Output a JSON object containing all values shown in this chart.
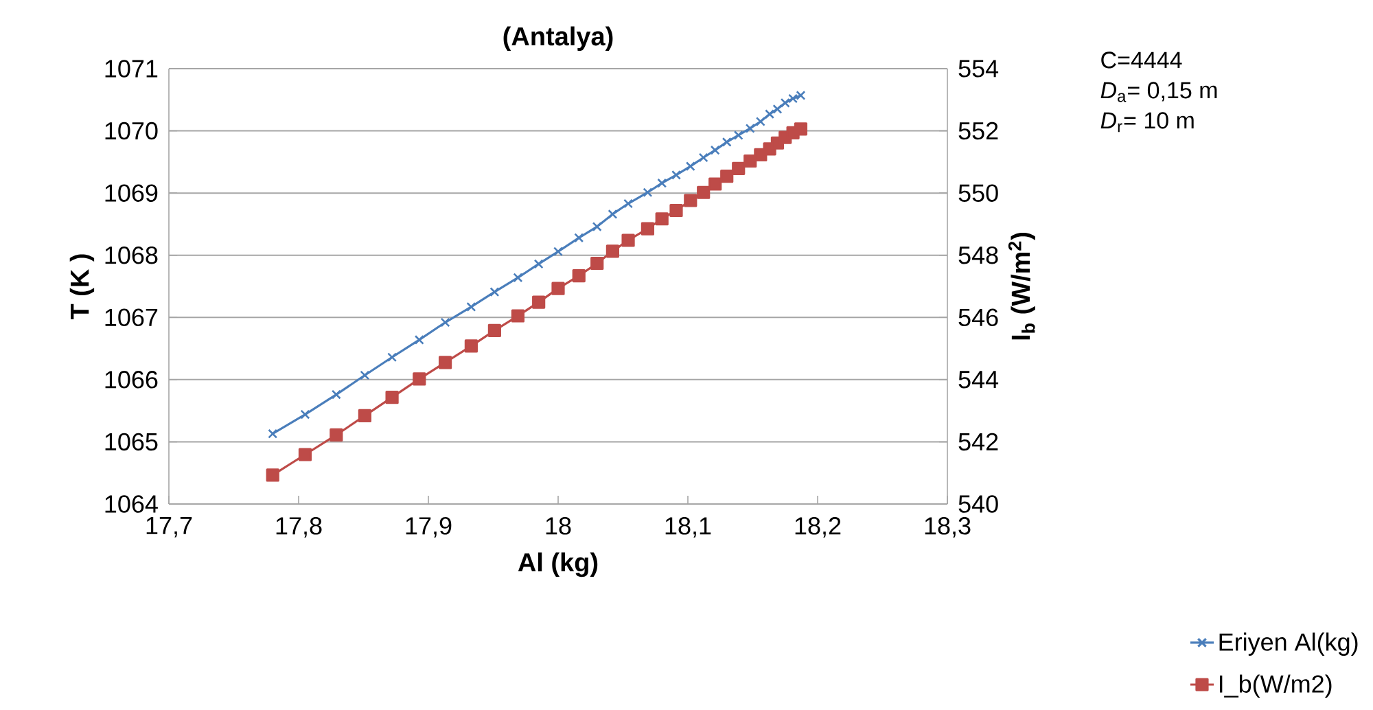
{
  "chart_data": {
    "type": "line",
    "title": "**(Antalya)**",
    "xlabel": "Al (kg)",
    "ylabel": "T (K )",
    "y2label": "I$_{b}$ (W/m$^{2}$)",
    "annotations": [
      "C=4444",
      "*D*$_{a}$= 0,15 m",
      "*D*$_{r}$= 10 m"
    ],
    "x": [
      17.78,
      17.805,
      17.829,
      17.851,
      17.872,
      17.893,
      17.913,
      17.933,
      17.951,
      17.969,
      17.985,
      18.0,
      18.016,
      18.03,
      18.042,
      18.054,
      18.069,
      18.08,
      18.091,
      18.102,
      18.112,
      18.121,
      18.13,
      18.139,
      18.148,
      18.156,
      18.163,
      18.169,
      18.175,
      18.181,
      18.187
    ],
    "series": [
      {
        "name": "Eriyen Al(kg)",
        "color": "#4a7ebb",
        "marker": "cross",
        "values": [
          1065.13,
          1065.44,
          1065.76,
          1066.07,
          1066.36,
          1066.64,
          1066.92,
          1067.17,
          1067.41,
          1067.64,
          1067.86,
          1068.06,
          1068.28,
          1068.46,
          1068.66,
          1068.83,
          1069.01,
          1069.16,
          1069.29,
          1069.43,
          1069.57,
          1069.69,
          1069.82,
          1069.93,
          1070.04,
          1070.15,
          1070.27,
          1070.35,
          1070.45,
          1070.52,
          1070.57
        ]
      },
      {
        "name": "I_b(W/m2)",
        "color": "#be4b48",
        "marker": "square",
        "axis": "y2",
        "values": [
          540.93,
          541.59,
          542.22,
          542.84,
          543.43,
          544.02,
          544.55,
          545.08,
          545.58,
          546.05,
          546.49,
          546.93,
          547.34,
          547.74,
          548.13,
          548.48,
          548.85,
          549.17,
          549.44,
          549.76,
          550.02,
          550.29,
          550.54,
          550.79,
          551.03,
          551.23,
          551.42,
          551.61,
          551.79,
          551.94,
          552.06
        ]
      }
    ],
    "xlim": [
      17.7,
      18.3
    ],
    "xticks": [
      {
        "value": 17.7,
        "label": "17,7"
      },
      {
        "value": 17.8,
        "label": "17,8"
      },
      {
        "value": 17.9,
        "label": "17,9"
      },
      18,
      {
        "value": 18.1,
        "label": "18,1"
      },
      {
        "value": 18.2,
        "label": "18,2"
      },
      {
        "value": 18.3,
        "label": "18,3"
      }
    ],
    "ylim": [
      1064,
      1071
    ],
    "yticks": [
      1064,
      1065,
      1066,
      1067,
      1068,
      1069,
      1070,
      1071
    ],
    "y2lim": [
      540,
      554
    ],
    "y2ticks": [
      540,
      542,
      544,
      546,
      548,
      550,
      552,
      554
    ],
    "grid": "y",
    "legend": "bottom right"
  }
}
